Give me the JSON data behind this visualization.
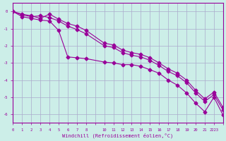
{
  "xlabel": "Windchill (Refroidissement éolien,°C)",
  "bg_color": "#cceee8",
  "line_color": "#990099",
  "grid_color": "#aaaacc",
  "series1_x": [
    0,
    1,
    2,
    3,
    4,
    5,
    6,
    7,
    8,
    10,
    11,
    12,
    13,
    14,
    15,
    16,
    17,
    18,
    19,
    20,
    21,
    22,
    23
  ],
  "series1_y": [
    0.0,
    -0.2,
    -0.3,
    -0.25,
    -0.35,
    -0.55,
    -0.85,
    -1.05,
    -1.3,
    -2.0,
    -2.1,
    -2.4,
    -2.55,
    -2.65,
    -2.85,
    -3.15,
    -3.5,
    -3.75,
    -4.15,
    -4.75,
    -5.25,
    -4.85,
    -5.75
  ],
  "series2_x": [
    0,
    1,
    2,
    3,
    4,
    5,
    6,
    7,
    8,
    10,
    11,
    12,
    13,
    14,
    15,
    16,
    17,
    18,
    19,
    20,
    21,
    22,
    23
  ],
  "series2_y": [
    0.0,
    -0.15,
    -0.25,
    -0.4,
    -0.15,
    -0.45,
    -0.7,
    -0.85,
    -1.1,
    -1.85,
    -1.95,
    -2.25,
    -2.4,
    -2.5,
    -2.7,
    -3.0,
    -3.35,
    -3.6,
    -4.0,
    -4.6,
    -5.1,
    -4.7,
    -5.6
  ],
  "series3_x": [
    0,
    1,
    2,
    3,
    4,
    5,
    6,
    7,
    8,
    10,
    11,
    12,
    13,
    14,
    15,
    16,
    17,
    18,
    19,
    20,
    21,
    22,
    23
  ],
  "series3_y": [
    0.0,
    -0.3,
    -0.4,
    -0.5,
    -0.55,
    -1.1,
    -2.65,
    -2.7,
    -2.75,
    -2.95,
    -3.0,
    -3.1,
    -3.1,
    -3.2,
    -3.4,
    -3.6,
    -4.0,
    -4.3,
    -4.75,
    -5.35,
    -5.85,
    -5.0,
    -6.05
  ],
  "xlim": [
    0,
    23
  ],
  "ylim": [
    -6.5,
    0.5
  ],
  "yticks": [
    0,
    -1,
    -2,
    -3,
    -4,
    -5,
    -6
  ],
  "xtick_labels": [
    "0",
    "1",
    "2",
    "3",
    "4",
    "5",
    "6",
    "7",
    "8",
    "",
    "10",
    "11",
    "12",
    "13",
    "14",
    "15",
    "16",
    "17",
    "18",
    "19",
    "20",
    "21",
    "2223"
  ]
}
